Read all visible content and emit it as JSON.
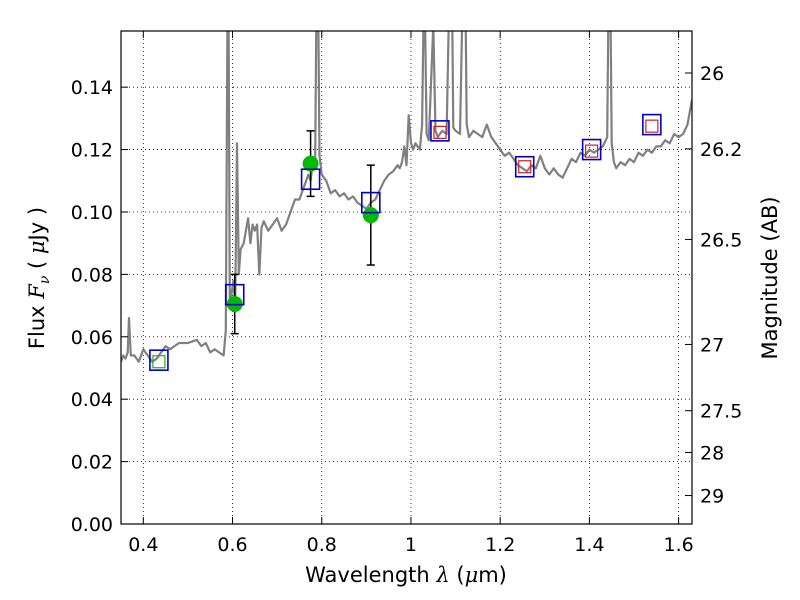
{
  "chart_data": {
    "type": "line",
    "xlabel": "Wavelength λ (μm)",
    "ylabel": "Flux F_ν ( μJy )",
    "ylabel_right": "Magnitude (AB)",
    "xlim": [
      0.35,
      1.63
    ],
    "ylim": [
      0.0,
      0.158
    ],
    "grid": true,
    "x_ticks": [
      {
        "value": 0.4,
        "label": "0.4"
      },
      {
        "value": 0.6,
        "label": "0.6"
      },
      {
        "value": 0.8,
        "label": "0.8"
      },
      {
        "value": 1.0,
        "label": "1"
      },
      {
        "value": 1.2,
        "label": "1.2"
      },
      {
        "value": 1.4,
        "label": "1.4"
      },
      {
        "value": 1.6,
        "label": "1.6"
      }
    ],
    "y_ticks": [
      {
        "value": 0.0,
        "label": "0.00"
      },
      {
        "value": 0.02,
        "label": "0.02"
      },
      {
        "value": 0.04,
        "label": "0.04"
      },
      {
        "value": 0.06,
        "label": "0.06"
      },
      {
        "value": 0.08,
        "label": "0.08"
      },
      {
        "value": 0.1,
        "label": "0.10"
      },
      {
        "value": 0.12,
        "label": "0.12"
      },
      {
        "value": 0.14,
        "label": "0.14"
      }
    ],
    "right_ticks": [
      {
        "value": 26.0,
        "label": "26"
      },
      {
        "value": 26.2,
        "label": "26.2"
      },
      {
        "value": 26.5,
        "label": "26.5"
      },
      {
        "value": 27.0,
        "label": "27"
      },
      {
        "value": 27.5,
        "label": "27.5"
      },
      {
        "value": 28.0,
        "label": "28"
      },
      {
        "value": 29.0,
        "label": "29"
      }
    ],
    "series": [
      {
        "kind": "spectrum",
        "color": "#808080",
        "points": [
          [
            0.35,
            0.052
          ],
          [
            0.355,
            0.054
          ],
          [
            0.36,
            0.053
          ],
          [
            0.365,
            0.055
          ],
          [
            0.368,
            0.066
          ],
          [
            0.372,
            0.054
          ],
          [
            0.38,
            0.054
          ],
          [
            0.39,
            0.052
          ],
          [
            0.4,
            0.056
          ],
          [
            0.41,
            0.054
          ],
          [
            0.42,
            0.052
          ],
          [
            0.43,
            0.053
          ],
          [
            0.44,
            0.055
          ],
          [
            0.45,
            0.057
          ],
          [
            0.46,
            0.056
          ],
          [
            0.47,
            0.057
          ],
          [
            0.48,
            0.058
          ],
          [
            0.5,
            0.058
          ],
          [
            0.52,
            0.059
          ],
          [
            0.53,
            0.057
          ],
          [
            0.54,
            0.058
          ],
          [
            0.55,
            0.055
          ],
          [
            0.56,
            0.056
          ],
          [
            0.57,
            0.055
          ],
          [
            0.58,
            0.054
          ],
          [
            0.585,
            0.062
          ],
          [
            0.59,
            0.2
          ],
          [
            0.594,
            0.07
          ],
          [
            0.598,
            0.074
          ],
          [
            0.602,
            0.078
          ],
          [
            0.606,
            0.07
          ],
          [
            0.61,
            0.122
          ],
          [
            0.614,
            0.08
          ],
          [
            0.618,
            0.088
          ],
          [
            0.625,
            0.09
          ],
          [
            0.63,
            0.094
          ],
          [
            0.635,
            0.098
          ],
          [
            0.64,
            0.09
          ],
          [
            0.645,
            0.096
          ],
          [
            0.65,
            0.094
          ],
          [
            0.655,
            0.096
          ],
          [
            0.66,
            0.08
          ],
          [
            0.665,
            0.095
          ],
          [
            0.67,
            0.097
          ],
          [
            0.68,
            0.094
          ],
          [
            0.69,
            0.096
          ],
          [
            0.7,
            0.098
          ],
          [
            0.71,
            0.094
          ],
          [
            0.72,
            0.096
          ],
          [
            0.73,
            0.1
          ],
          [
            0.74,
            0.104
          ],
          [
            0.75,
            0.104
          ],
          [
            0.76,
            0.108
          ],
          [
            0.77,
            0.112
          ],
          [
            0.775,
            0.11
          ],
          [
            0.78,
            0.116
          ],
          [
            0.785,
            0.114
          ],
          [
            0.79,
            0.2
          ],
          [
            0.795,
            0.118
          ],
          [
            0.8,
            0.112
          ],
          [
            0.81,
            0.11
          ],
          [
            0.82,
            0.106
          ],
          [
            0.83,
            0.107
          ],
          [
            0.84,
            0.105
          ],
          [
            0.85,
            0.106
          ],
          [
            0.86,
            0.104
          ],
          [
            0.87,
            0.105
          ],
          [
            0.88,
            0.103
          ],
          [
            0.89,
            0.102
          ],
          [
            0.9,
            0.101
          ],
          [
            0.91,
            0.103
          ],
          [
            0.92,
            0.104
          ],
          [
            0.93,
            0.107
          ],
          [
            0.94,
            0.11
          ],
          [
            0.95,
            0.112
          ],
          [
            0.96,
            0.113
          ],
          [
            0.97,
            0.115
          ],
          [
            0.975,
            0.114
          ],
          [
            0.98,
            0.116
          ],
          [
            0.985,
            0.121
          ],
          [
            0.99,
            0.115
          ],
          [
            0.995,
            0.131
          ],
          [
            1.0,
            0.122
          ],
          [
            1.005,
            0.12
          ],
          [
            1.01,
            0.122
          ],
          [
            1.02,
            0.12
          ],
          [
            1.025,
            0.128
          ],
          [
            1.03,
            0.18
          ],
          [
            1.035,
            0.125
          ],
          [
            1.04,
            0.123
          ],
          [
            1.05,
            0.16
          ],
          [
            1.055,
            0.126
          ],
          [
            1.06,
            0.124
          ],
          [
            1.07,
            0.126
          ],
          [
            1.08,
            0.125
          ],
          [
            1.09,
            0.2
          ],
          [
            1.095,
            0.127
          ],
          [
            1.1,
            0.126
          ],
          [
            1.11,
            0.125
          ],
          [
            1.12,
            0.2
          ],
          [
            1.125,
            0.128
          ],
          [
            1.13,
            0.124
          ],
          [
            1.14,
            0.126
          ],
          [
            1.15,
            0.125
          ],
          [
            1.16,
            0.124
          ],
          [
            1.17,
            0.128
          ],
          [
            1.18,
            0.124
          ],
          [
            1.19,
            0.122
          ],
          [
            1.2,
            0.12
          ],
          [
            1.21,
            0.118
          ],
          [
            1.22,
            0.119
          ],
          [
            1.23,
            0.117
          ],
          [
            1.24,
            0.115
          ],
          [
            1.25,
            0.114
          ],
          [
            1.26,
            0.113
          ],
          [
            1.27,
            0.115
          ],
          [
            1.28,
            0.114
          ],
          [
            1.29,
            0.118
          ],
          [
            1.3,
            0.114
          ],
          [
            1.31,
            0.112
          ],
          [
            1.32,
            0.114
          ],
          [
            1.33,
            0.112
          ],
          [
            1.34,
            0.111
          ],
          [
            1.35,
            0.114
          ],
          [
            1.36,
            0.117
          ],
          [
            1.37,
            0.116
          ],
          [
            1.38,
            0.119
          ],
          [
            1.39,
            0.118
          ],
          [
            1.4,
            0.12
          ],
          [
            1.41,
            0.119
          ],
          [
            1.42,
            0.12
          ],
          [
            1.43,
            0.121
          ],
          [
            1.44,
            0.124
          ],
          [
            1.445,
            0.2
          ],
          [
            1.45,
            0.122
          ],
          [
            1.455,
            0.116
          ],
          [
            1.46,
            0.114
          ],
          [
            1.47,
            0.116
          ],
          [
            1.48,
            0.115
          ],
          [
            1.49,
            0.117
          ],
          [
            1.5,
            0.116
          ],
          [
            1.51,
            0.119
          ],
          [
            1.52,
            0.118
          ],
          [
            1.53,
            0.12
          ],
          [
            1.54,
            0.119
          ],
          [
            1.55,
            0.121
          ],
          [
            1.56,
            0.121
          ],
          [
            1.57,
            0.123
          ],
          [
            1.58,
            0.122
          ],
          [
            1.59,
            0.125
          ],
          [
            1.6,
            0.124
          ],
          [
            1.61,
            0.125
          ],
          [
            1.62,
            0.128
          ],
          [
            1.63,
            0.136
          ]
        ]
      },
      {
        "kind": "photometry",
        "color": "#00bb00",
        "points": [
          {
            "x": 0.605,
            "y": 0.0705,
            "yerr": 0.0095
          },
          {
            "x": 0.775,
            "y": 0.1155,
            "yerr": 0.0105
          },
          {
            "x": 0.91,
            "y": 0.099,
            "yerr": 0.016
          }
        ]
      },
      {
        "kind": "model-bandpass",
        "color": "#0000cc",
        "points": [
          {
            "x": 0.435,
            "y": 0.0525
          },
          {
            "x": 0.605,
            "y": 0.0735
          },
          {
            "x": 0.775,
            "y": 0.1105
          },
          {
            "x": 0.91,
            "y": 0.103
          },
          {
            "x": 1.065,
            "y": 0.126
          },
          {
            "x": 1.255,
            "y": 0.1145
          },
          {
            "x": 1.405,
            "y": 0.12
          },
          {
            "x": 1.54,
            "y": 0.128
          }
        ]
      },
      {
        "kind": "observed-bandpass",
        "color": "#cc2222",
        "points": [
          {
            "x": 1.065,
            "y": 0.1255
          },
          {
            "x": 1.255,
            "y": 0.1145
          },
          {
            "x": 1.405,
            "y": 0.1195
          },
          {
            "x": 1.54,
            "y": 0.1275
          }
        ]
      },
      {
        "kind": "observed-bandpass-optical",
        "color": "#22aa22",
        "points": [
          {
            "x": 0.435,
            "y": 0.052
          }
        ]
      }
    ]
  }
}
